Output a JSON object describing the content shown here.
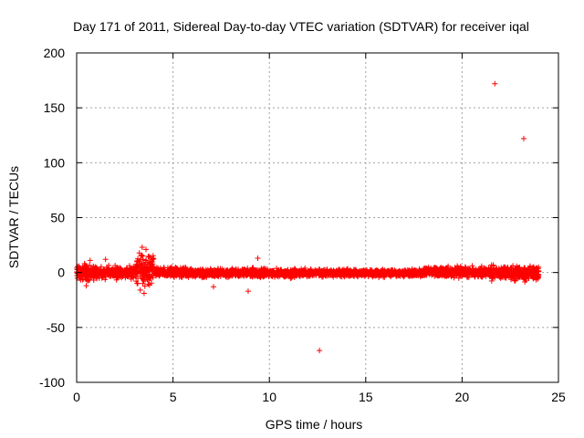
{
  "chart_data": {
    "type": "scatter",
    "title": "Day 171 of 2011, Sidereal Day-to-day VTEC variation (SDTVAR) for receiver iqal",
    "xlabel": "GPS time / hours",
    "ylabel": "SDTVAR / TECUs",
    "xlim": [
      0,
      25
    ],
    "ylim": [
      -100,
      200
    ],
    "xticks": [
      0,
      5,
      10,
      15,
      20,
      25
    ],
    "yticks": [
      -100,
      -50,
      0,
      50,
      100,
      150,
      200
    ],
    "xtick_labels": [
      "0",
      "5",
      "10",
      "15",
      "20",
      "25"
    ],
    "ytick_labels": [
      "-100",
      "-50",
      "0",
      "50",
      "100",
      "150",
      "200"
    ],
    "grid": true,
    "marker": "+",
    "color": "#ff0000",
    "dense_band": {
      "x_range": [
        0,
        24
      ],
      "typical_spread": 6,
      "segments": [
        {
          "x": [
            0.0,
            1.0
          ],
          "y_range": [
            -10,
            10
          ]
        },
        {
          "x": [
            1.0,
            3.0
          ],
          "y_range": [
            -8,
            8
          ]
        },
        {
          "x": [
            3.0,
            4.0
          ],
          "y_range": [
            -15,
            22
          ]
        },
        {
          "x": [
            4.0,
            6.0
          ],
          "y_range": [
            -6,
            6
          ]
        },
        {
          "x": [
            6.0,
            12.0
          ],
          "y_range": [
            -6,
            5
          ]
        },
        {
          "x": [
            12.0,
            18.0
          ],
          "y_range": [
            -5,
            4
          ]
        },
        {
          "x": [
            18.0,
            21.5
          ],
          "y_range": [
            -6,
            7
          ]
        },
        {
          "x": [
            21.5,
            24.0
          ],
          "y_range": [
            -9,
            8
          ]
        }
      ]
    },
    "outliers": [
      {
        "x": 21.7,
        "y": 172
      },
      {
        "x": 23.2,
        "y": 122
      },
      {
        "x": 12.6,
        "y": -71
      },
      {
        "x": 9.4,
        "y": 13
      },
      {
        "x": 8.9,
        "y": -17
      },
      {
        "x": 7.1,
        "y": -13
      },
      {
        "x": 3.4,
        "y": 23
      },
      {
        "x": 3.5,
        "y": -19
      },
      {
        "x": 3.3,
        "y": -16
      },
      {
        "x": 3.6,
        "y": 21
      },
      {
        "x": 0.5,
        "y": -12
      },
      {
        "x": 0.7,
        "y": 11
      },
      {
        "x": 1.5,
        "y": 12
      }
    ]
  }
}
